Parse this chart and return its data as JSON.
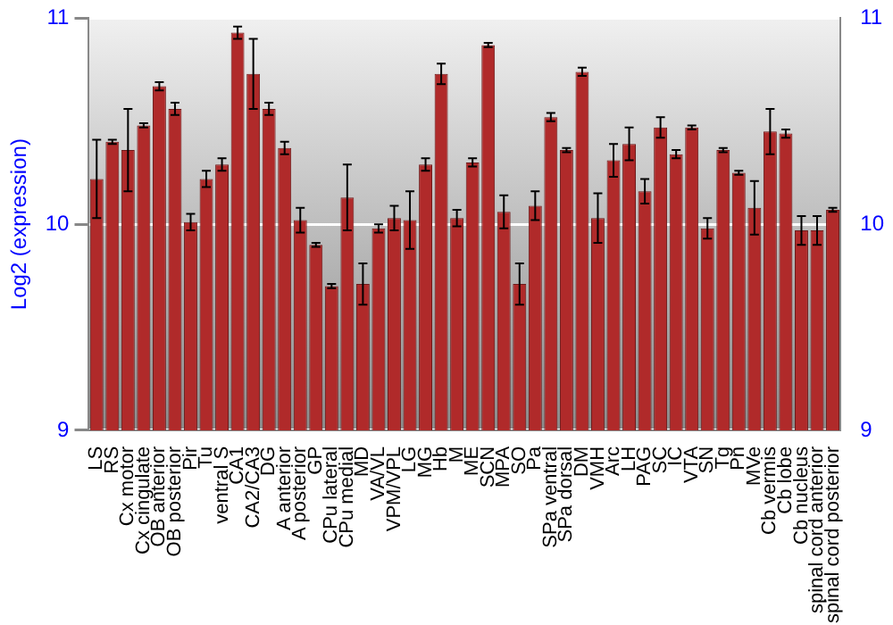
{
  "chart_data": {
    "type": "bar",
    "ylabel": "Log2 (expression)",
    "categories": [
      "LS",
      "RS",
      "Cx motor",
      "Cx cingulate",
      "OB anterior",
      "OB posterior",
      "Pir",
      "Tu",
      "ventral S",
      "CA1",
      "CA2/CA3",
      "DG",
      "A anterior",
      "A posterior",
      "GP",
      "CPu lateral",
      "CPu medial",
      "MD",
      "VA/VL",
      "VPM/VPL",
      "LG",
      "MG",
      "Hb",
      "M",
      "ME",
      "SCN",
      "MPA",
      "SO",
      "Pa",
      "SPa ventral",
      "SPa dorsal",
      "DM",
      "VMH",
      "Arc",
      "LH",
      "PAG",
      "SC",
      "IC",
      "VTA",
      "SN",
      "Tg",
      "Pn",
      "MVe",
      "Cb vermis",
      "Cb lobe",
      "Cb nucleus",
      "spinal cord anterior",
      "spinal cord posterior"
    ],
    "values": [
      10.22,
      10.4,
      10.36,
      10.48,
      10.67,
      10.56,
      10.01,
      10.22,
      10.29,
      10.93,
      10.73,
      10.56,
      10.37,
      10.02,
      9.9,
      9.7,
      10.13,
      9.71,
      9.98,
      10.03,
      10.02,
      10.29,
      10.73,
      10.03,
      10.3,
      10.87,
      10.06,
      9.71,
      10.09,
      10.52,
      10.36,
      10.74,
      10.03,
      10.31,
      10.39,
      10.16,
      10.47,
      10.34,
      10.47,
      9.98,
      10.36,
      10.25,
      10.08,
      10.45,
      10.44,
      9.97,
      9.97,
      10.07
    ],
    "errors": [
      0.19,
      0.01,
      0.2,
      0.01,
      0.02,
      0.03,
      0.04,
      0.04,
      0.03,
      0.03,
      0.17,
      0.03,
      0.03,
      0.06,
      0.01,
      0.01,
      0.16,
      0.1,
      0.02,
      0.06,
      0.14,
      0.03,
      0.05,
      0.04,
      0.02,
      0.01,
      0.08,
      0.1,
      0.07,
      0.02,
      0.01,
      0.02,
      0.12,
      0.08,
      0.08,
      0.06,
      0.05,
      0.02,
      0.01,
      0.05,
      0.01,
      0.01,
      0.13,
      0.11,
      0.02,
      0.07,
      0.07,
      0.01
    ],
    "color": "#b02a2a",
    "ylim": [
      9,
      11
    ],
    "yticks": [
      9,
      10,
      11
    ],
    "y2lim": [
      9,
      11
    ],
    "y2ticks": [
      9,
      10,
      11
    ],
    "grid": "y",
    "legend": false
  }
}
